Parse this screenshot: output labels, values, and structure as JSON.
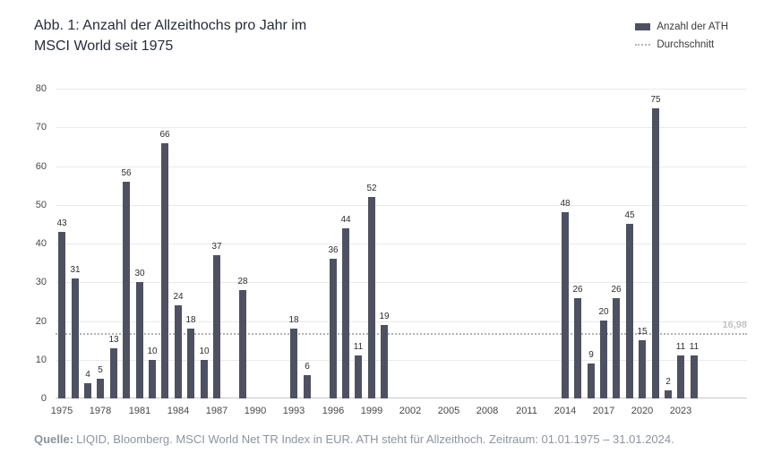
{
  "header": {
    "title_line1": "Abb. 1: Anzahl der Allzeithochs pro Jahr im",
    "title_line2": "MSCI World seit 1975",
    "legend": {
      "bar_label": "Anzahl der ATH",
      "line_label": "Durchschnitt"
    }
  },
  "footer": {
    "source_prefix": "Quelle:",
    "source_text": "LIQID, Bloomberg. MSCI World Net TR Index in EUR. ATH steht für Allzeithoch. Zeitraum: 01.01.1975 – 31.01.2024."
  },
  "chart_data": {
    "type": "bar",
    "title": "Abb. 1: Anzahl der Allzeithochs pro Jahr im MSCI World seit 1975",
    "xlabel": "",
    "ylabel": "",
    "ylim": [
      0,
      80
    ],
    "yticks": [
      0,
      10,
      20,
      30,
      40,
      50,
      60,
      70,
      80
    ],
    "grid": true,
    "legend": [
      "Anzahl der ATH",
      "Durchschnitt"
    ],
    "legend_position": "top-right",
    "bar_color": "#4e5161",
    "avg_line_color": "#b4b4b4",
    "average": 16.98,
    "average_label": "16,98",
    "x": [
      1975,
      1976,
      1977,
      1978,
      1979,
      1980,
      1981,
      1982,
      1983,
      1984,
      1985,
      1986,
      1987,
      1988,
      1989,
      1990,
      1991,
      1992,
      1993,
      1994,
      1995,
      1996,
      1997,
      1998,
      1999,
      2000,
      2001,
      2002,
      2003,
      2004,
      2005,
      2006,
      2007,
      2008,
      2009,
      2010,
      2011,
      2012,
      2013,
      2014,
      2015,
      2016,
      2017,
      2018,
      2019,
      2020,
      2021,
      2022,
      2023,
      2024
    ],
    "values": [
      43,
      31,
      4,
      5,
      13,
      56,
      30,
      10,
      66,
      24,
      18,
      10,
      37,
      0,
      28,
      0,
      0,
      0,
      18,
      6,
      0,
      36,
      44,
      11,
      52,
      19,
      0,
      0,
      0,
      0,
      0,
      0,
      0,
      0,
      0,
      0,
      0,
      0,
      0,
      48,
      26,
      9,
      20,
      26,
      45,
      15,
      75,
      2,
      11,
      11
    ],
    "xtick_labels": [
      1975,
      1978,
      1981,
      1984,
      1987,
      1990,
      1993,
      1996,
      1999,
      2002,
      2005,
      2008,
      2011,
      2014,
      2017,
      2020,
      2023
    ]
  }
}
